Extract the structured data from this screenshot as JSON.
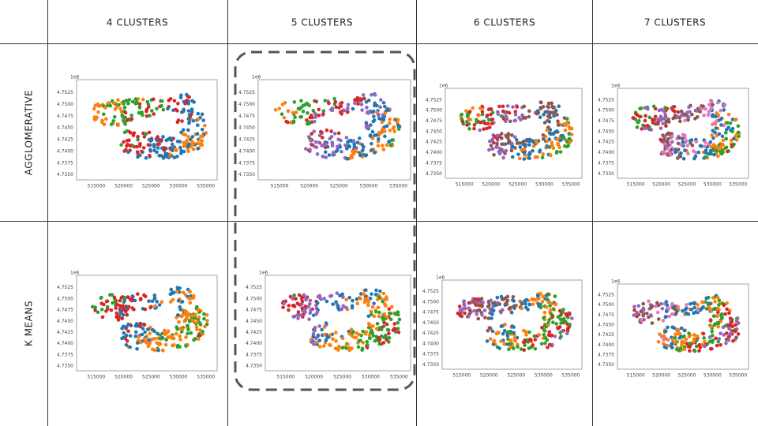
{
  "columns": [
    "4 CLUSTERS",
    "5 CLUSTERS",
    "6 CLUSTERS",
    "7 CLUSTERS"
  ],
  "rows": [
    "AGGLOMERATIVE",
    "K MEANS"
  ],
  "plot_axes": {
    "offset": "1e6",
    "yticks": [
      "4.7525",
      "4.7500",
      "4.7475",
      "4.7450",
      "4.7425",
      "4.7400",
      "4.7375",
      "4.7350"
    ],
    "xticks": [
      "515000",
      "520000",
      "525000",
      "530000",
      "535000"
    ]
  },
  "palette": [
    "#1f77b4",
    "#ff7f0e",
    "#2ca02c",
    "#d62728",
    "#9467bd",
    "#8c564b",
    "#e377c2"
  ]
}
